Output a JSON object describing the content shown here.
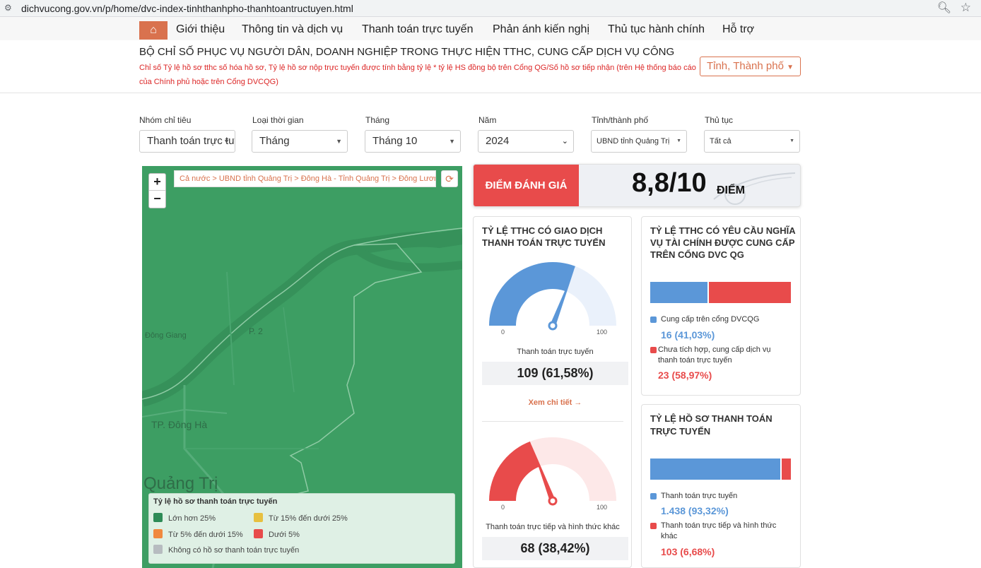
{
  "browser": {
    "url": "dichvucong.gov.vn/p/home/dvc-index-tinhthanhpho-thanhtoantructuyen.html"
  },
  "nav": {
    "items": [
      "Giới thiệu",
      "Thông tin và dịch vụ",
      "Thanh toán trực tuyến",
      "Phản ánh kiến nghị",
      "Thủ tục hành chính",
      "Hỗ trợ"
    ]
  },
  "header": {
    "title": "BỘ CHỈ SỐ PHỤC VỤ NGƯỜI DÂN, DOANH NGHIỆP TRONG THỰC HIỆN TTHC, CUNG CẤP DỊCH VỤ CÔNG",
    "note": "Chỉ số Tỷ lệ hồ sơ tthc số hóa hồ sơ, Tỷ lệ hồ sơ nộp trực tuyến được tính bằng tỷ lệ * tỷ lệ HS đồng bộ trên Cổng QG/Số hồ sơ tiếp nhận (trên Hệ thống báo cáo của Chính phủ hoặc trên Cổng DVCQG)",
    "province_button": "Tỉnh, Thành phố"
  },
  "filters": [
    {
      "label": "Nhóm chỉ tiêu",
      "value": "Thanh toán trực tuyến"
    },
    {
      "label": "Loại thời gian",
      "value": "Tháng"
    },
    {
      "label": "Tháng",
      "value": "Tháng 10"
    },
    {
      "label": "Năm",
      "value": "2024"
    },
    {
      "label": "Tỉnh/thành phố",
      "value": "UBND tỉnh Quảng Trị"
    },
    {
      "label": "Thủ tục",
      "value": "Tất cả"
    }
  ],
  "map": {
    "zoom_in": "+",
    "zoom_out": "−",
    "breadcrumb": "Cả nước > UBND tỉnh Quảng Trị > Đông Hà - Tỉnh Quảng Trị > Đông Lương",
    "labels": {
      "p2": "P. 2",
      "dong_giang": "Đông Giang",
      "tp_dong_ha": "TP. Đông Hà",
      "quang_tri": "Quảng Trị"
    },
    "legend": {
      "title": "Tỷ lệ hồ sơ thanh toán trực tuyến",
      "items": [
        {
          "label": "Lớn hơn 25%",
          "color": "#2e8b57"
        },
        {
          "label": "Từ 15% đến dưới 25%",
          "color": "#e7c040"
        },
        {
          "label": "Từ 5% đến dưới 15%",
          "color": "#f0883e"
        },
        {
          "label": "Dưới 5%",
          "color": "#e84b4b"
        },
        {
          "label": "Không có hồ sơ thanh toán trực tuyến",
          "color": "#b7bcc0"
        }
      ]
    }
  },
  "score": {
    "label": "ĐIỂM ĐÁNH GIÁ",
    "value": "8,8/10",
    "unit": "ĐIỂM"
  },
  "card_transactions": {
    "title_line1": "TỶ LỆ TTHC CÓ GIAO DỊCH",
    "title_line2": "THANH TOÁN TRỰC TUYẾN",
    "gauge1": {
      "min": "0",
      "max": "100",
      "percent": 61.58,
      "label": "Thanh toán trực tuyến",
      "value": "109 (61,58%)",
      "color": "#5b97d8",
      "track": "#eaf1fb"
    },
    "more_link": "Xem chi tiết →",
    "gauge2": {
      "min": "0",
      "max": "100",
      "percent": 38.42,
      "label": "Thanh toán trực tiếp và hình thức khác",
      "value": "68 (38,42%)",
      "color": "#e84b4b",
      "track": "#fde8e8"
    }
  },
  "card_finance": {
    "title_line1": "TỶ LỆ TTHC CÓ YÊU CẦU NGHĨA",
    "title_line2": "VỤ TÀI CHÍNH ĐƯỢC CUNG CẤP",
    "title_line3": "TRÊN CỔNG DVC QG",
    "share_provided": 41.03,
    "provided_label": "Cung cấp trên cổng DVCQG",
    "provided_value": "16 (41,03%)",
    "not_label_line1": "Chưa tích hợp, cung cấp dịch vụ",
    "not_label_line2": "thanh toán trực tuyến",
    "not_value": "23 (58,97%)"
  },
  "card_records": {
    "title_line1": "TỶ LỆ HỒ SƠ THANH TOÁN",
    "title_line2": "TRỰC TUYẾN",
    "share_online": 93.32,
    "online_label": "Thanh toán trực tuyến",
    "online_value": "1.438 (93,32%)",
    "direct_label_line1": "Thanh toán trực tiếp và hình thức",
    "direct_label_line2": "khác",
    "direct_value": "103 (6,68%)"
  },
  "colors": {
    "accent": "#d9724e",
    "blue": "#5b97d8",
    "red": "#e84b4b",
    "map_green": "#3d9e63"
  }
}
